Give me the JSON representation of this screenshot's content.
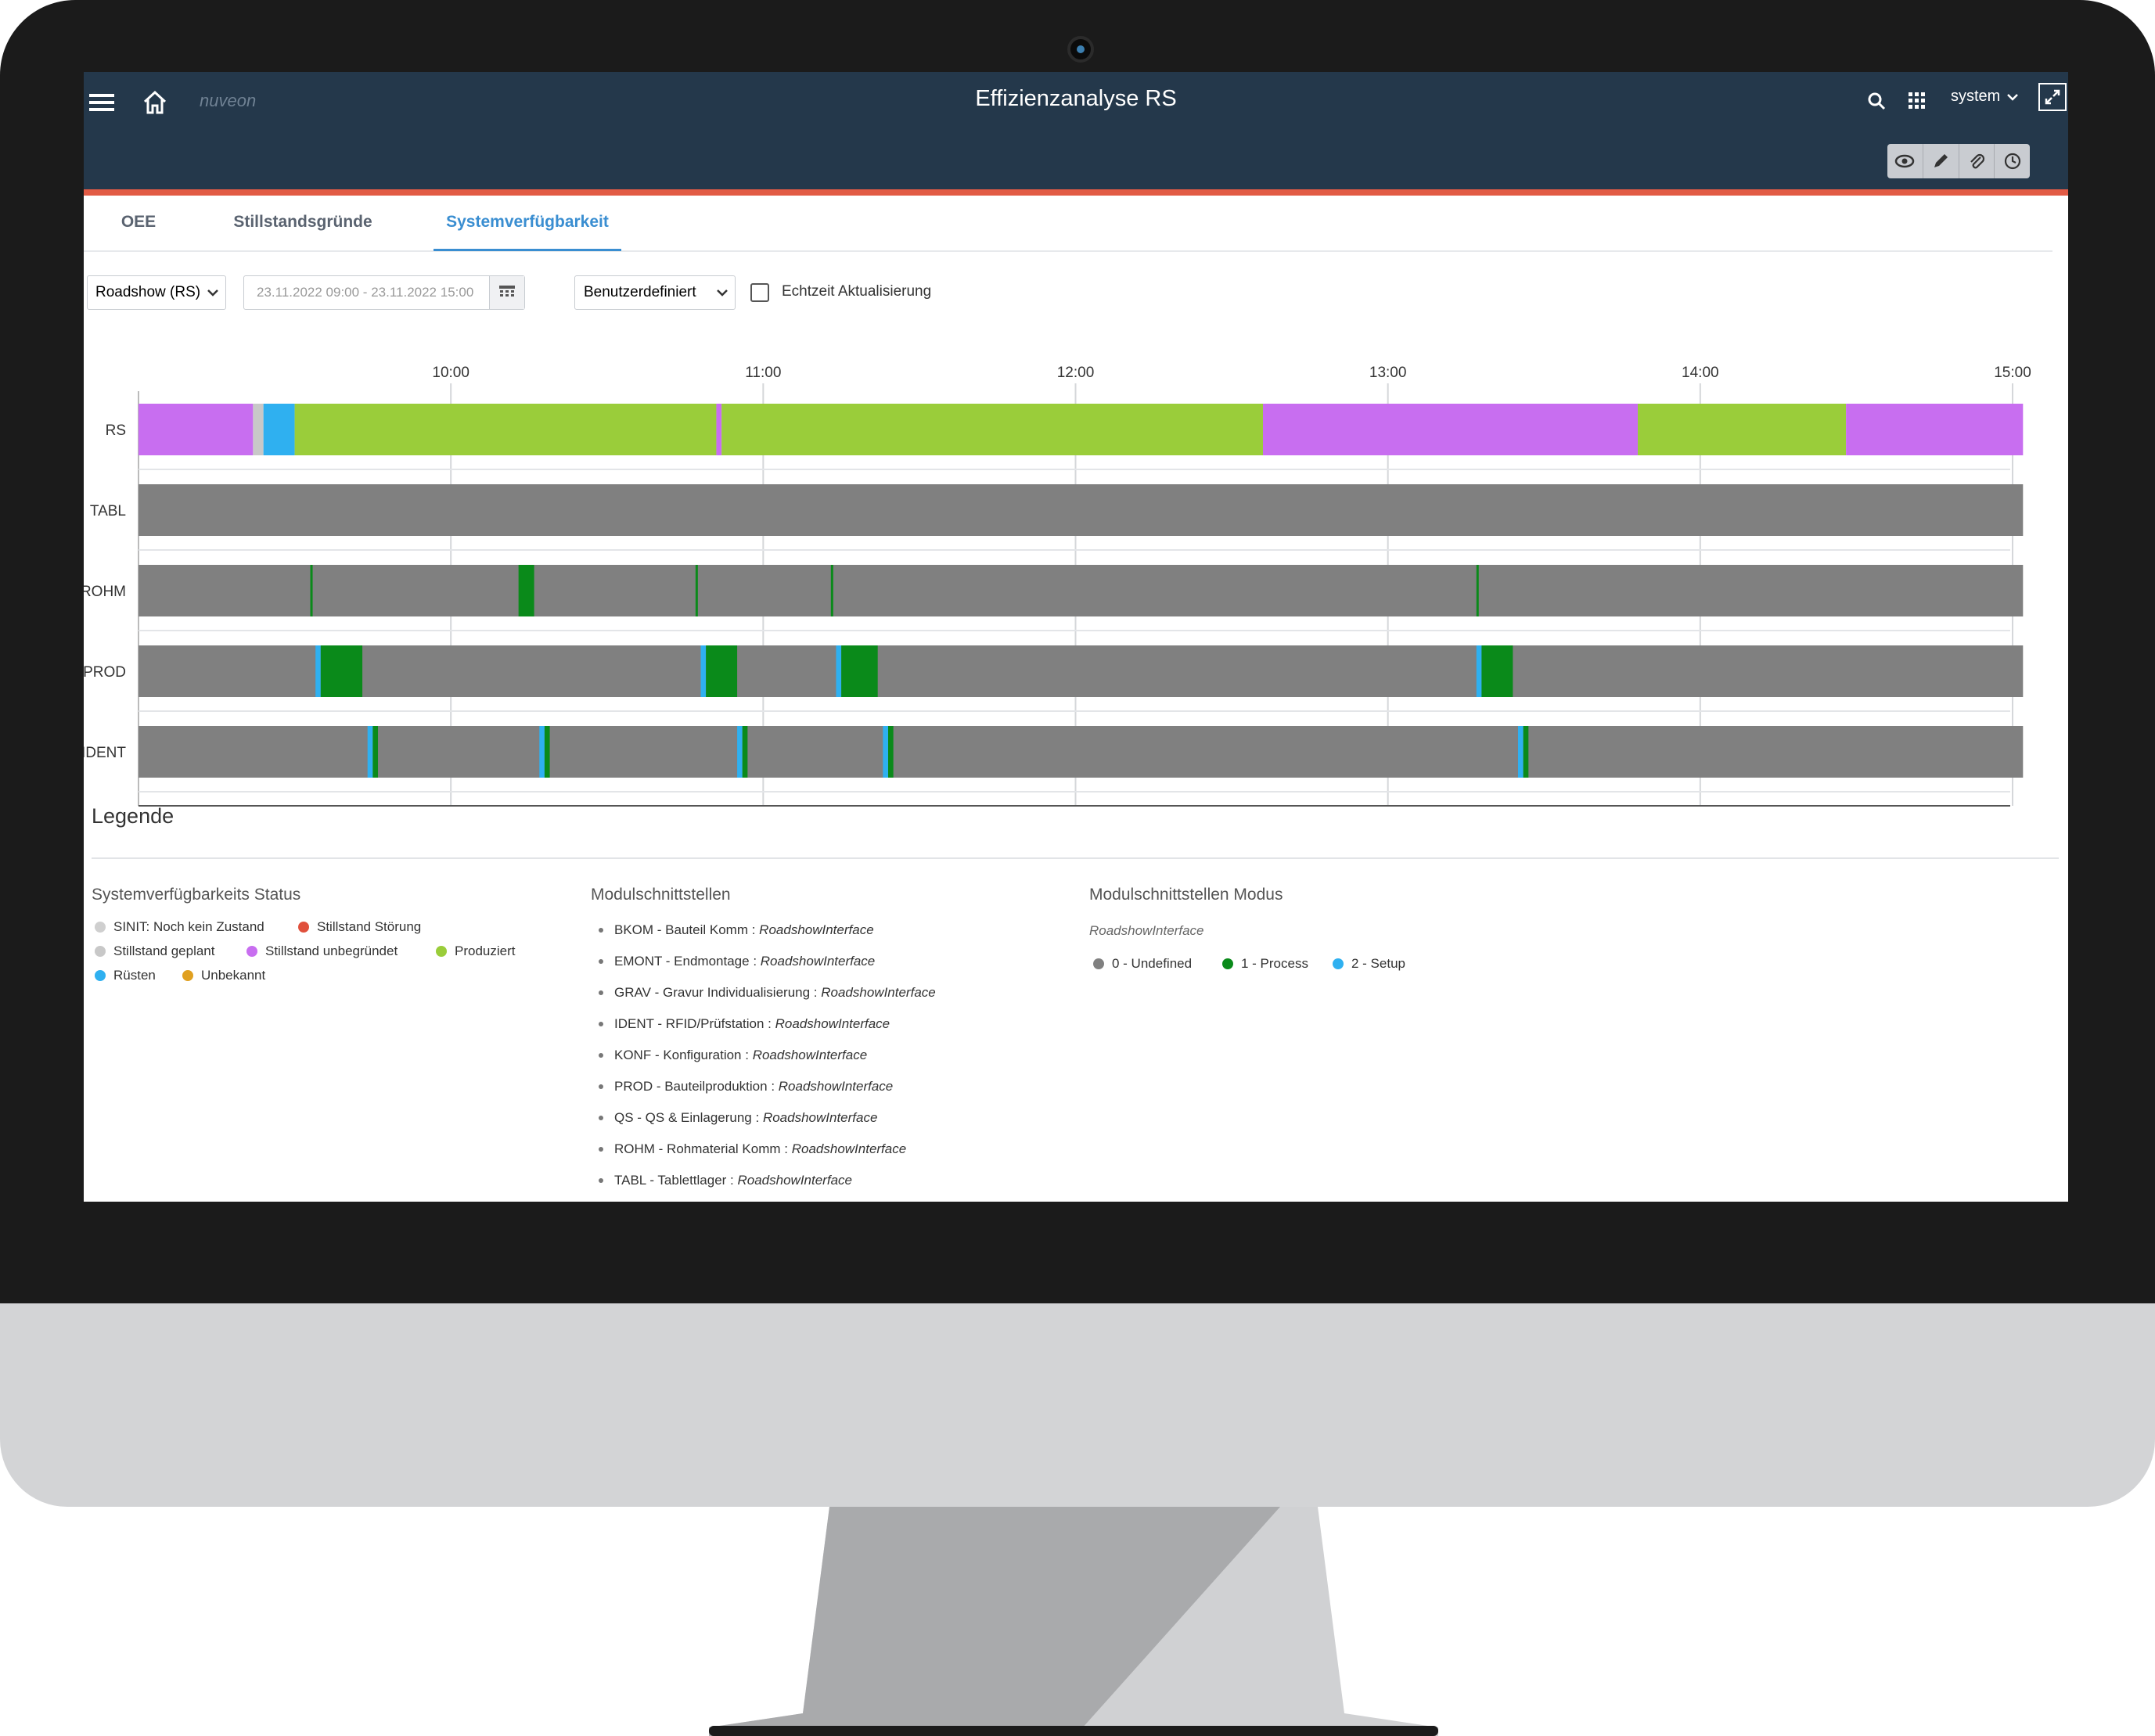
{
  "header": {
    "title": "Effizienzanalyse RS",
    "brand": "nuveon",
    "user": "system"
  },
  "tabs": [
    {
      "label": "OEE",
      "active": false
    },
    {
      "label": "Stillstandsgründe",
      "active": false
    },
    {
      "label": "Systemverfügbarkeit",
      "active": true
    }
  ],
  "filters": {
    "line_select": "Roadshow (RS)",
    "date_range": "23.11.2022 09:00 - 23.11.2022 15:00",
    "period_select": "Benutzerdefiniert",
    "realtime_label": "Echtzeit Aktualisierung",
    "realtime_checked": false
  },
  "chart_data": {
    "type": "timeline",
    "x_range": [
      "09:00",
      "15:00"
    ],
    "x_ticks": [
      "10:00",
      "11:00",
      "12:00",
      "13:00",
      "14:00",
      "15:00"
    ],
    "rows": [
      {
        "label": "RS",
        "segments": [
          {
            "start": "09:00",
            "end": "09:22",
            "status": "Stillstand unbegründet"
          },
          {
            "start": "09:22",
            "end": "09:24",
            "status": "Stillstand geplant"
          },
          {
            "start": "09:24",
            "end": "09:30",
            "status": "Rüsten"
          },
          {
            "start": "09:30",
            "end": "10:51",
            "status": "Produziert"
          },
          {
            "start": "10:51",
            "end": "10:52",
            "status": "Stillstand unbegründet"
          },
          {
            "start": "10:52",
            "end": "12:36",
            "status": "Produziert"
          },
          {
            "start": "12:36",
            "end": "13:48",
            "status": "Stillstand unbegründet"
          },
          {
            "start": "13:48",
            "end": "14:28",
            "status": "Produziert"
          },
          {
            "start": "14:28",
            "end": "15:02",
            "status": "Stillstand unbegründet"
          }
        ]
      },
      {
        "label": "TABL",
        "segments": [
          {
            "start": "09:00",
            "end": "15:02",
            "status": "0 - Undefined"
          }
        ]
      },
      {
        "label": "ROHM",
        "segments": [
          {
            "start": "09:00",
            "end": "15:02",
            "status": "0 - Undefined"
          },
          {
            "start": "09:33",
            "end": "09:33",
            "status": "1 - Process"
          },
          {
            "start": "10:13",
            "end": "10:16",
            "status": "1 - Process"
          },
          {
            "start": "10:47",
            "end": "10:47",
            "status": "1 - Process"
          },
          {
            "start": "11:13",
            "end": "11:13",
            "status": "1 - Process"
          },
          {
            "start": "13:17",
            "end": "13:17",
            "status": "1 - Process"
          }
        ]
      },
      {
        "label": "PROD",
        "segments": [
          {
            "start": "09:00",
            "end": "15:02",
            "status": "0 - Undefined"
          },
          {
            "start": "09:34",
            "end": "09:35",
            "status": "2 - Setup"
          },
          {
            "start": "09:35",
            "end": "09:43",
            "status": "1 - Process"
          },
          {
            "start": "10:48",
            "end": "10:49",
            "status": "2 - Setup"
          },
          {
            "start": "10:49",
            "end": "10:55",
            "status": "1 - Process"
          },
          {
            "start": "11:14",
            "end": "11:15",
            "status": "2 - Setup"
          },
          {
            "start": "11:15",
            "end": "11:22",
            "status": "1 - Process"
          },
          {
            "start": "13:17",
            "end": "13:18",
            "status": "2 - Setup"
          },
          {
            "start": "13:18",
            "end": "13:24",
            "status": "1 - Process"
          }
        ]
      },
      {
        "label": "IDENT",
        "segments": [
          {
            "start": "09:00",
            "end": "15:02",
            "status": "0 - Undefined"
          },
          {
            "start": "09:44",
            "end": "09:45",
            "status": "2 - Setup"
          },
          {
            "start": "09:45",
            "end": "09:46",
            "status": "1 - Process"
          },
          {
            "start": "10:17",
            "end": "10:18",
            "status": "2 - Setup"
          },
          {
            "start": "10:18",
            "end": "10:19",
            "status": "1 - Process"
          },
          {
            "start": "10:55",
            "end": "10:56",
            "status": "2 - Setup"
          },
          {
            "start": "10:56",
            "end": "10:57",
            "status": "1 - Process"
          },
          {
            "start": "11:23",
            "end": "11:24",
            "status": "2 - Setup"
          },
          {
            "start": "11:24",
            "end": "11:25",
            "status": "1 - Process"
          },
          {
            "start": "13:25",
            "end": "13:26",
            "status": "2 - Setup"
          },
          {
            "start": "13:26",
            "end": "13:27",
            "status": "1 - Process"
          }
        ]
      }
    ],
    "colors": {
      "Stillstand unbegründet": "#c86ef0",
      "Stillstand geplant": "#c8c8c8",
      "Rüsten": "#2fb0f0",
      "Produziert": "#9acd3a",
      "0 - Undefined": "#808080",
      "1 - Process": "#0a8a1a",
      "2 - Setup": "#2fb0f0"
    }
  },
  "legend": {
    "title": "Legende",
    "status_heading": "Systemverfügbarkeits Status",
    "status_items": [
      {
        "label": "SINIT: Noch kein Zustand",
        "color": "#cfcfcf"
      },
      {
        "label": "Stillstand Störung",
        "color": "#e0503c"
      },
      {
        "label": "Stillstand geplant",
        "color": "#c8c8c8"
      },
      {
        "label": "Stillstand unbegründet",
        "color": "#c86ef0"
      },
      {
        "label": "Produziert",
        "color": "#9acd3a"
      },
      {
        "label": "Rüsten",
        "color": "#2fb0f0"
      },
      {
        "label": "Unbekannt",
        "color": "#e0a020"
      }
    ],
    "module_heading": "Modulschnittstellen",
    "modules": [
      {
        "name": "BKOM - Bauteil Komm :",
        "iface": "RoadshowInterface"
      },
      {
        "name": "EMONT - Endmontage :",
        "iface": "RoadshowInterface"
      },
      {
        "name": "GRAV - Gravur Individualisierung :",
        "iface": "RoadshowInterface"
      },
      {
        "name": "IDENT - RFID/Prüfstation :",
        "iface": "RoadshowInterface"
      },
      {
        "name": "KONF - Konfiguration :",
        "iface": "RoadshowInterface"
      },
      {
        "name": "PROD - Bauteilproduktion :",
        "iface": "RoadshowInterface"
      },
      {
        "name": "QS - QS & Einlagerung :",
        "iface": "RoadshowInterface"
      },
      {
        "name": "ROHM - Rohmaterial Komm :",
        "iface": "RoadshowInterface"
      },
      {
        "name": "TABL - Tablettlager :",
        "iface": "RoadshowInterface"
      }
    ],
    "mode_heading": "Modulschnittstellen Modus",
    "mode_interface": "RoadshowInterface",
    "modes": [
      {
        "label": "0 - Undefined",
        "color": "#808080"
      },
      {
        "label": "1 - Process",
        "color": "#0a8a1a"
      },
      {
        "label": "2 - Setup",
        "color": "#2fb0f0"
      }
    ]
  }
}
